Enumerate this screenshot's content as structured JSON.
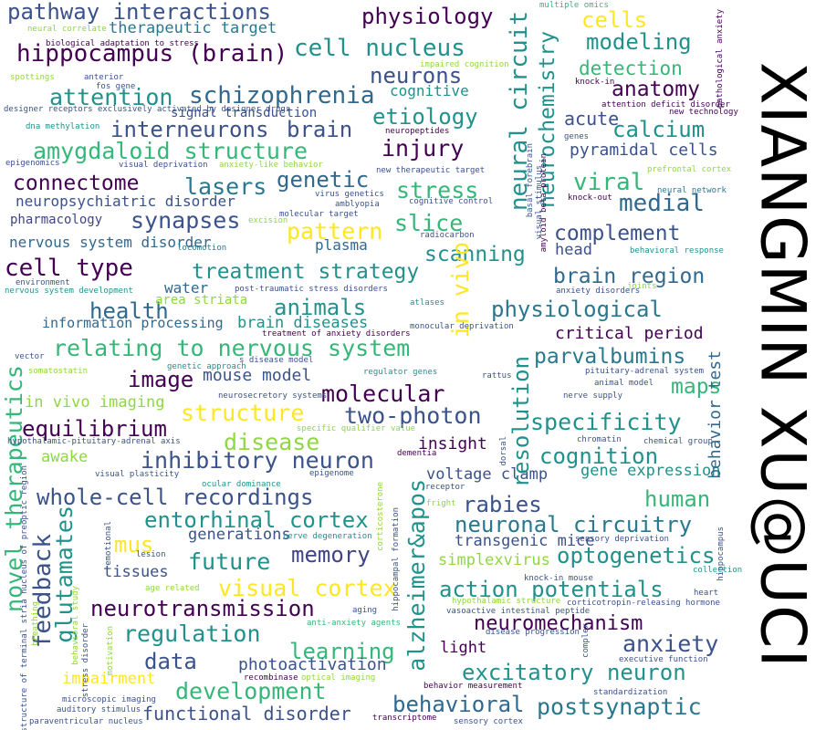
{
  "side_title": "XIANGMIN XU@UCI",
  "palette": {
    "dark_purple": "#440154",
    "indigo": "#3b528b",
    "blue": "#31688e",
    "teal": "#21918c",
    "green": "#35b779",
    "lime": "#90d743",
    "yellow": "#fde725",
    "navy": "#414487",
    "sea": "#2a788e",
    "mint": "#5ec962"
  },
  "words": [
    {
      "text": "pathway interactions"
    },
    {
      "text": "physiology"
    },
    {
      "text": "cells"
    },
    {
      "text": "therapeutic target"
    },
    {
      "text": "cell nucleus"
    },
    {
      "text": "modeling"
    },
    {
      "text": "hippocampus (brain)"
    },
    {
      "text": "neurons"
    },
    {
      "text": "detection"
    },
    {
      "text": "attention"
    },
    {
      "text": "schizophrenia"
    },
    {
      "text": "anatomy"
    },
    {
      "text": "signal transduction"
    },
    {
      "text": "cognitive"
    },
    {
      "text": "etiology"
    },
    {
      "text": "interneurons"
    },
    {
      "text": "brain"
    },
    {
      "text": "calcium"
    },
    {
      "text": "amygdaloid structure"
    },
    {
      "text": "injury"
    },
    {
      "text": "pyramidal cells"
    },
    {
      "text": "connectome"
    },
    {
      "text": "lasers"
    },
    {
      "text": "genetic"
    },
    {
      "text": "viral"
    },
    {
      "text": "stress"
    },
    {
      "text": "neuropsychiatric disorder"
    },
    {
      "text": "medial"
    },
    {
      "text": "synapses"
    },
    {
      "text": "pharmacology"
    },
    {
      "text": "slice"
    },
    {
      "text": "pattern"
    },
    {
      "text": "complement"
    },
    {
      "text": "nervous system disorder"
    },
    {
      "text": "plasma"
    },
    {
      "text": "head"
    },
    {
      "text": "scanning"
    },
    {
      "text": "cell type"
    },
    {
      "text": "treatment strategy"
    },
    {
      "text": "brain region"
    },
    {
      "text": "water"
    },
    {
      "text": "health"
    },
    {
      "text": "animals"
    },
    {
      "text": "physiological"
    },
    {
      "text": "area striata"
    },
    {
      "text": "information processing"
    },
    {
      "text": "brain diseases"
    },
    {
      "text": "critical period"
    },
    {
      "text": "relating to nervous system"
    },
    {
      "text": "parvalbumins"
    },
    {
      "text": "image"
    },
    {
      "text": "mouse model"
    },
    {
      "text": "molecular"
    },
    {
      "text": "maps"
    },
    {
      "text": "in vivo imaging"
    },
    {
      "text": "structure"
    },
    {
      "text": "two-photon"
    },
    {
      "text": "equilibrium"
    },
    {
      "text": "specificity"
    },
    {
      "text": "disease"
    },
    {
      "text": "awake"
    },
    {
      "text": "insight"
    },
    {
      "text": "inhibitory neuron"
    },
    {
      "text": "cognition"
    },
    {
      "text": "voltage clamp"
    },
    {
      "text": "gene expression"
    },
    {
      "text": "whole-cell recordings"
    },
    {
      "text": "human"
    },
    {
      "text": "rabies"
    },
    {
      "text": "entorhinal cortex"
    },
    {
      "text": "neuronal circuitry"
    },
    {
      "text": "generations"
    },
    {
      "text": "mus"
    },
    {
      "text": "transgenic mice"
    },
    {
      "text": "memory"
    },
    {
      "text": "optogenetics"
    },
    {
      "text": "future"
    },
    {
      "text": "simplexvirus"
    },
    {
      "text": "tissues"
    },
    {
      "text": "visual cortex"
    },
    {
      "text": "action potentials"
    },
    {
      "text": "neurotransmission"
    },
    {
      "text": "neuromechanism"
    },
    {
      "text": "regulation"
    },
    {
      "text": "learning"
    },
    {
      "text": "anxiety"
    },
    {
      "text": "data"
    },
    {
      "text": "photoactivation"
    },
    {
      "text": "light"
    },
    {
      "text": "impairment"
    },
    {
      "text": "excitatory neuron"
    },
    {
      "text": "development"
    },
    {
      "text": "behavioral"
    },
    {
      "text": "postsynaptic"
    },
    {
      "text": "functional disorder"
    },
    {
      "text": "feedback"
    },
    {
      "text": "glutamates"
    },
    {
      "text": "novel therapeutics"
    },
    {
      "text": "alzheimer&apos"
    },
    {
      "text": "resolution"
    },
    {
      "text": "in vivo"
    },
    {
      "text": "neural circuit"
    },
    {
      "text": "neurochemistry"
    },
    {
      "text": "behavior test"
    },
    {
      "text": "multiple omics"
    },
    {
      "text": "neural correlate"
    },
    {
      "text": "biological adaptation to stress"
    },
    {
      "text": "impaired cognition"
    },
    {
      "text": "spottings"
    },
    {
      "text": "anterior"
    },
    {
      "text": "fos gene"
    },
    {
      "text": "designer receptors exclusively activated by designer drugs"
    },
    {
      "text": "neuropeptides"
    },
    {
      "text": "knock-in"
    },
    {
      "text": "attention deficit disorder"
    },
    {
      "text": "new technology"
    },
    {
      "text": "dna methylation"
    },
    {
      "text": "genes"
    },
    {
      "text": "epigenomics"
    },
    {
      "text": "visual deprivation"
    },
    {
      "text": "anxiety-like behavior"
    },
    {
      "text": "new therapeutic target"
    },
    {
      "text": "prefrontal cortex"
    },
    {
      "text": "virus genetics"
    },
    {
      "text": "amblyopia"
    },
    {
      "text": "cognitive control"
    },
    {
      "text": "neural network"
    },
    {
      "text": "knock-out"
    },
    {
      "text": "molecular target"
    },
    {
      "text": "excision"
    },
    {
      "text": "radiocarbon"
    },
    {
      "text": "locomotion"
    },
    {
      "text": "behavioral response"
    },
    {
      "text": "environment"
    },
    {
      "text": "nervous system development"
    },
    {
      "text": "post-traumatic stress disorders"
    },
    {
      "text": "anxiety disorders"
    },
    {
      "text": "joints"
    },
    {
      "text": "atlases"
    },
    {
      "text": "monocular deprivation"
    },
    {
      "text": "treatment of anxiety disorders"
    },
    {
      "text": "vector"
    },
    {
      "text": "genetic approach"
    },
    {
      "text": "s disease model"
    },
    {
      "text": "somatostatin"
    },
    {
      "text": "regulator genes"
    },
    {
      "text": "rattus"
    },
    {
      "text": "pituitary-adrenal system"
    },
    {
      "text": "animal model"
    },
    {
      "text": "neurosecretory systems"
    },
    {
      "text": "nerve supply"
    },
    {
      "text": "hypothalamic-pituitary-adrenal axis"
    },
    {
      "text": "specific qualifier value"
    },
    {
      "text": "chromatin"
    },
    {
      "text": "chemical group"
    },
    {
      "text": "dementia"
    },
    {
      "text": "epigenome"
    },
    {
      "text": "visual plasticity"
    },
    {
      "text": "ocular dominance"
    },
    {
      "text": "receptor"
    },
    {
      "text": "fright"
    },
    {
      "text": "emotional"
    },
    {
      "text": "lesion"
    },
    {
      "text": "nerve degeneration"
    },
    {
      "text": "sensory deprivation"
    },
    {
      "text": "collection"
    },
    {
      "text": "knock-in mouse"
    },
    {
      "text": "age related"
    },
    {
      "text": "heart"
    },
    {
      "text": "hypothalamic structure"
    },
    {
      "text": "aging"
    },
    {
      "text": "vasoactive intestinal peptide"
    },
    {
      "text": "corticotropin-releasing hormone"
    },
    {
      "text": "anti-anxiety agents"
    },
    {
      "text": "disease progression"
    },
    {
      "text": "executive function"
    },
    {
      "text": "recombinase"
    },
    {
      "text": "optical imaging"
    },
    {
      "text": "behavior measurement"
    },
    {
      "text": "standardization"
    },
    {
      "text": "microscopic imaging"
    },
    {
      "text": "auditory stimulus"
    },
    {
      "text": "transcriptome"
    },
    {
      "text": "paraventricular nucleus"
    },
    {
      "text": "sensory cortex"
    },
    {
      "text": "amyloid beta-protein"
    },
    {
      "text": "basal forebrain"
    },
    {
      "text": "visual stimulus"
    },
    {
      "text": "pathological anxiety"
    },
    {
      "text": "dorsal"
    },
    {
      "text": "hippocampal formation"
    },
    {
      "text": "corticosterone"
    },
    {
      "text": "structure of terminal stria nucleus of preoptic region"
    },
    {
      "text": "breathing"
    },
    {
      "text": "behavioral study"
    },
    {
      "text": "stress disorder"
    },
    {
      "text": "motivation"
    },
    {
      "text": "complex"
    },
    {
      "text": "acute"
    },
    {
      "text": "hippocampus"
    }
  ]
}
